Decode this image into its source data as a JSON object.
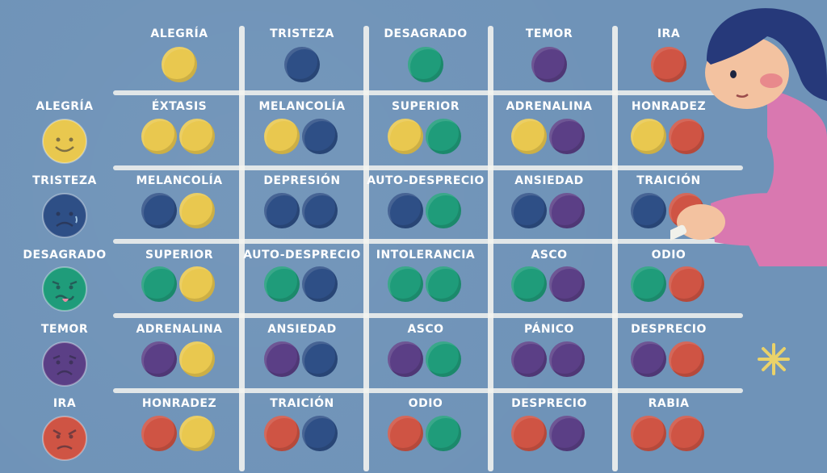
{
  "columns": [
    {
      "label": "ALEGRÍA",
      "color": "#e9c84f"
    },
    {
      "label": "TRISTEZA",
      "color": "#2e4f86"
    },
    {
      "label": "DESAGRADO",
      "color": "#1f9c7a"
    },
    {
      "label": "TEMOR",
      "color": "#5b3f86"
    },
    {
      "label": "IRA",
      "color": "#cf5444"
    }
  ],
  "rows": [
    {
      "label": "ALEGRÍA",
      "face": "happy",
      "color": "#e9c84f",
      "cells": [
        {
          "label": "ÉXTASIS",
          "colors": [
            "#e9c84f",
            "#e9c84f"
          ]
        },
        {
          "label": "MELANCOLÍA",
          "colors": [
            "#e9c84f",
            "#2e4f86"
          ]
        },
        {
          "label": "SUPERIOR",
          "colors": [
            "#e9c84f",
            "#1f9c7a"
          ]
        },
        {
          "label": "ADRENALINA",
          "colors": [
            "#e9c84f",
            "#5b3f86"
          ]
        },
        {
          "label": "HONRADEZ",
          "colors": [
            "#e9c84f",
            "#cf5444"
          ]
        }
      ]
    },
    {
      "label": "TRISTEZA",
      "face": "sad",
      "color": "#2e4f86",
      "cells": [
        {
          "label": "MELANCOLÍA",
          "colors": [
            "#2e4f86",
            "#e9c84f"
          ]
        },
        {
          "label": "DEPRESIÓN",
          "colors": [
            "#2e4f86",
            "#2e4f86"
          ]
        },
        {
          "label": "AUTO-DESPRECIO",
          "colors": [
            "#2e4f86",
            "#1f9c7a"
          ]
        },
        {
          "label": "ANSIEDAD",
          "colors": [
            "#2e4f86",
            "#5b3f86"
          ]
        },
        {
          "label": "TRAICIÓN",
          "colors": [
            "#2e4f86",
            "#cf5444"
          ]
        }
      ]
    },
    {
      "label": "DESAGRADO",
      "face": "disgust",
      "color": "#1f9c7a",
      "cells": [
        {
          "label": "SUPERIOR",
          "colors": [
            "#1f9c7a",
            "#e9c84f"
          ]
        },
        {
          "label": "AUTO-DESPRECIO",
          "colors": [
            "#1f9c7a",
            "#2e4f86"
          ]
        },
        {
          "label": "INTOLERANCIA",
          "colors": [
            "#1f9c7a",
            "#1f9c7a"
          ]
        },
        {
          "label": "ASCO",
          "colors": [
            "#1f9c7a",
            "#5b3f86"
          ]
        },
        {
          "label": "ODIO",
          "colors": [
            "#1f9c7a",
            "#cf5444"
          ]
        }
      ]
    },
    {
      "label": "TEMOR",
      "face": "fear",
      "color": "#5b3f86",
      "cells": [
        {
          "label": "ADRENALINA",
          "colors": [
            "#5b3f86",
            "#e9c84f"
          ]
        },
        {
          "label": "ANSIEDAD",
          "colors": [
            "#5b3f86",
            "#2e4f86"
          ]
        },
        {
          "label": "ASCO",
          "colors": [
            "#5b3f86",
            "#1f9c7a"
          ]
        },
        {
          "label": "PÁNICO",
          "colors": [
            "#5b3f86",
            "#5b3f86"
          ]
        },
        {
          "label": "DESPRECIO",
          "colors": [
            "#5b3f86",
            "#cf5444"
          ]
        }
      ]
    },
    {
      "label": "IRA",
      "face": "angry",
      "color": "#cf5444",
      "cells": [
        {
          "label": "HONRADEZ",
          "colors": [
            "#cf5444",
            "#e9c84f"
          ]
        },
        {
          "label": "TRAICIÓN",
          "colors": [
            "#cf5444",
            "#2e4f86"
          ]
        },
        {
          "label": "ODIO",
          "colors": [
            "#cf5444",
            "#1f9c7a"
          ]
        },
        {
          "label": "DESPRECIO",
          "colors": [
            "#cf5444",
            "#5b3f86"
          ]
        },
        {
          "label": "RABIA",
          "colors": [
            "#cf5444",
            "#cf5444"
          ]
        }
      ]
    }
  ],
  "decor": {
    "skin": "#f3c2a0",
    "hair": "#26397a",
    "shirt": "#d978b0",
    "chalk": "#f1f1ea",
    "sparkle": "#ead26a"
  }
}
